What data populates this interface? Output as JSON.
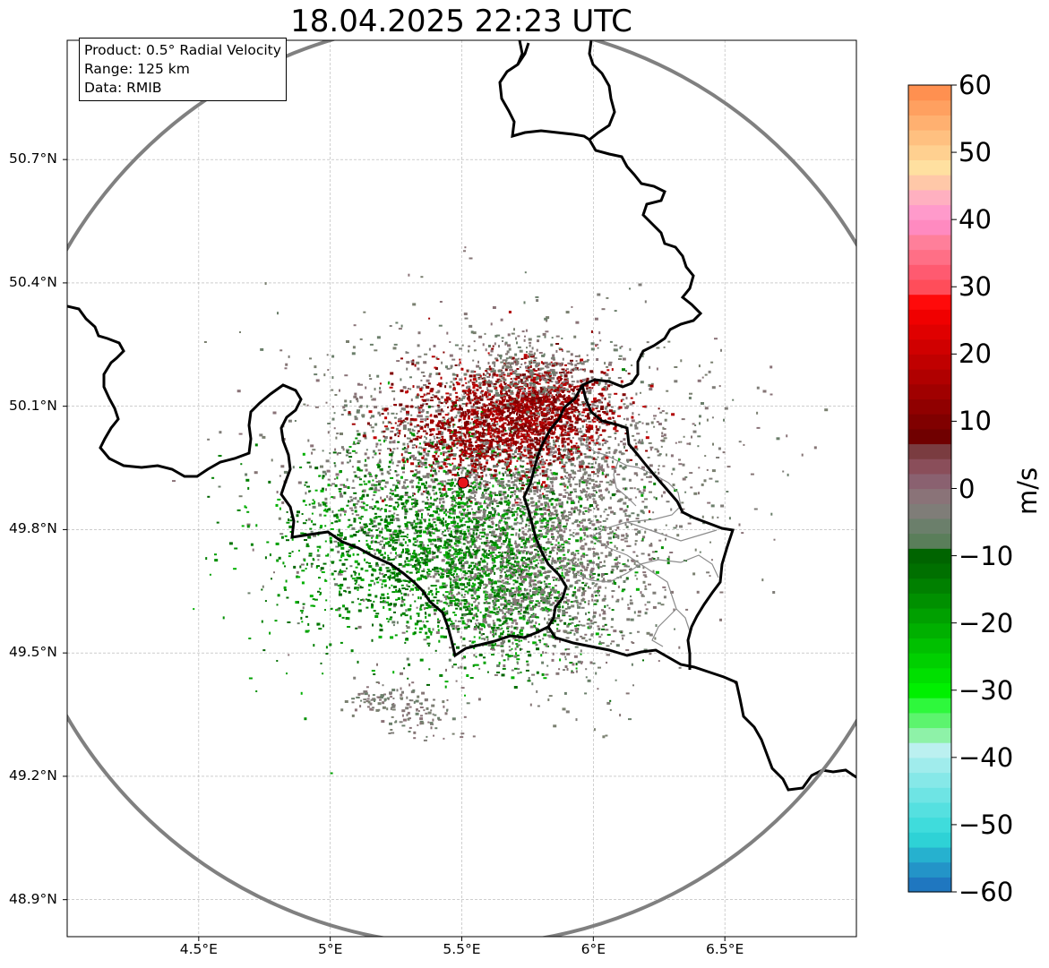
{
  "title": "18.04.2025 22:23 UTC",
  "info": {
    "product": "Product: 0.5° Radial Velocity",
    "range": "Range: 125 km",
    "source": "Data: RMIB"
  },
  "axes": {
    "lat_labels": [
      "50.7°N",
      "50.4°N",
      "50.1°N",
      "49.8°N",
      "49.5°N",
      "49.2°N",
      "48.9°N"
    ],
    "lon_labels": [
      "4.5°E",
      "5°E",
      "5.5°E",
      "6°E",
      "6.5°E"
    ],
    "lat_values": [
      50.7,
      50.4,
      50.1,
      49.8,
      49.5,
      49.2,
      48.9
    ],
    "lon_values": [
      4.5,
      5.0,
      5.5,
      6.0,
      6.5
    ],
    "lat_range": [
      48.81,
      50.99
    ],
    "lon_range": [
      4.0,
      7.0
    ],
    "grid": true
  },
  "radar": {
    "lat": 49.914,
    "lon": 5.505,
    "range_km": 125,
    "marker_color": "#e8141c"
  },
  "colorbar": {
    "unit": "m/s",
    "min": -60,
    "max": 60,
    "ticks": [
      "60",
      "50",
      "40",
      "30",
      "20",
      "10",
      "0",
      "−10",
      "−20",
      "−30",
      "−40",
      "−50",
      "−60"
    ],
    "tick_values": [
      60,
      50,
      40,
      30,
      20,
      10,
      0,
      -10,
      -20,
      -30,
      -40,
      -50,
      -60
    ],
    "colors_low_to_high": [
      "#1f77c0",
      "#2394c8",
      "#26b1cf",
      "#2ed2d6",
      "#3fdcdc",
      "#55e0e0",
      "#6ee4e4",
      "#86e8e8",
      "#a0ecec",
      "#bbf0f0",
      "#8ef2a8",
      "#5cf46e",
      "#2ef83c",
      "#00f000",
      "#00e000",
      "#00d000",
      "#00c000",
      "#00b000",
      "#00a000",
      "#009000",
      "#008000",
      "#007000",
      "#006400",
      "#5a7e5a",
      "#6b7f6b",
      "#7f7d78",
      "#8a7378",
      "#8a6170",
      "#8a4e5a",
      "#7a3c40",
      "#700000",
      "#800000",
      "#900000",
      "#a00000",
      "#b00000",
      "#c00000",
      "#d00000",
      "#e00000",
      "#f00000",
      "#ff0a0a",
      "#ff4d5a",
      "#ff5a70",
      "#ff6f86",
      "#ff7f9a",
      "#ff8ac0",
      "#ff9acb",
      "#ffb0c0",
      "#ffc8a8",
      "#ffe0a0",
      "#ffd090",
      "#ffc080",
      "#ffb070",
      "#ffa060",
      "#ff9050"
    ]
  },
  "colors": {
    "frame": "#000000",
    "grid": "#b0b0b0",
    "range_ring": "#808080",
    "border": "#000000",
    "sub_border": "#8c8c8c"
  }
}
